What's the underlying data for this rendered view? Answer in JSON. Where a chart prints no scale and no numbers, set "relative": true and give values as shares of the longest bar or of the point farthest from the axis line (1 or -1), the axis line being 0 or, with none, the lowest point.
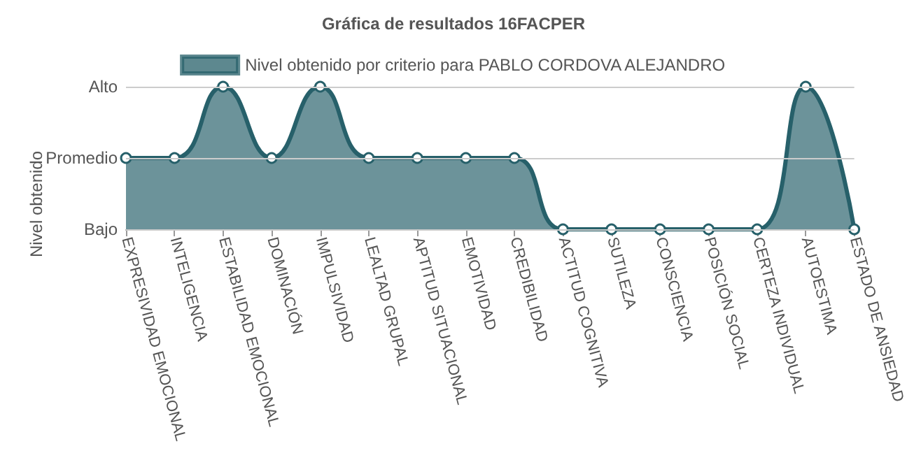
{
  "chart_data": {
    "type": "area",
    "title": "Gráfica de resultados 16FACPER",
    "ylabel": "Nivel obtenido",
    "relative": true,
    "categories": [
      "EXPRESIVIDAD EMOCIONAL",
      "INTELIGENCIA",
      "ESTABILIDAD EMOCIONAL",
      "DOMINACIÓN",
      "IMPULSIVIDAD",
      "LEALTAD GRUPAL",
      "APTITUD SITUACIONAL",
      "EMOTIVIDAD",
      "CREDIBILIDAD",
      "ACTITUD COGNITIVA",
      "SUTILEZA",
      "CONSCIENCIA",
      "POSICIÓN SOCIAL",
      "CERTEZA INDIVIDUAL",
      "AUTOESTIMA",
      "ESTADO DE ANSIEDAD"
    ],
    "series": [
      {
        "name": "Nivel obtenido por criterio para PABLO CORDOVA ALEJANDRO",
        "color": "#27606a",
        "values": [
          0.5,
          0.5,
          1,
          0.5,
          1,
          0.5,
          0.5,
          0.5,
          0.5,
          0,
          0,
          0,
          0,
          0,
          1,
          0
        ]
      }
    ],
    "ref_lines": [
      {
        "axis": "y",
        "value": 0,
        "label": "Bajo",
        "color": "#cccccc"
      },
      {
        "axis": "y",
        "value": 0.5,
        "label": "Promedio",
        "color": "#cccccc"
      },
      {
        "axis": "y",
        "value": 1,
        "label": "Alto",
        "color": "#cccccc"
      }
    ],
    "legend": "top",
    "marker": "circle",
    "line_style": "solid"
  }
}
